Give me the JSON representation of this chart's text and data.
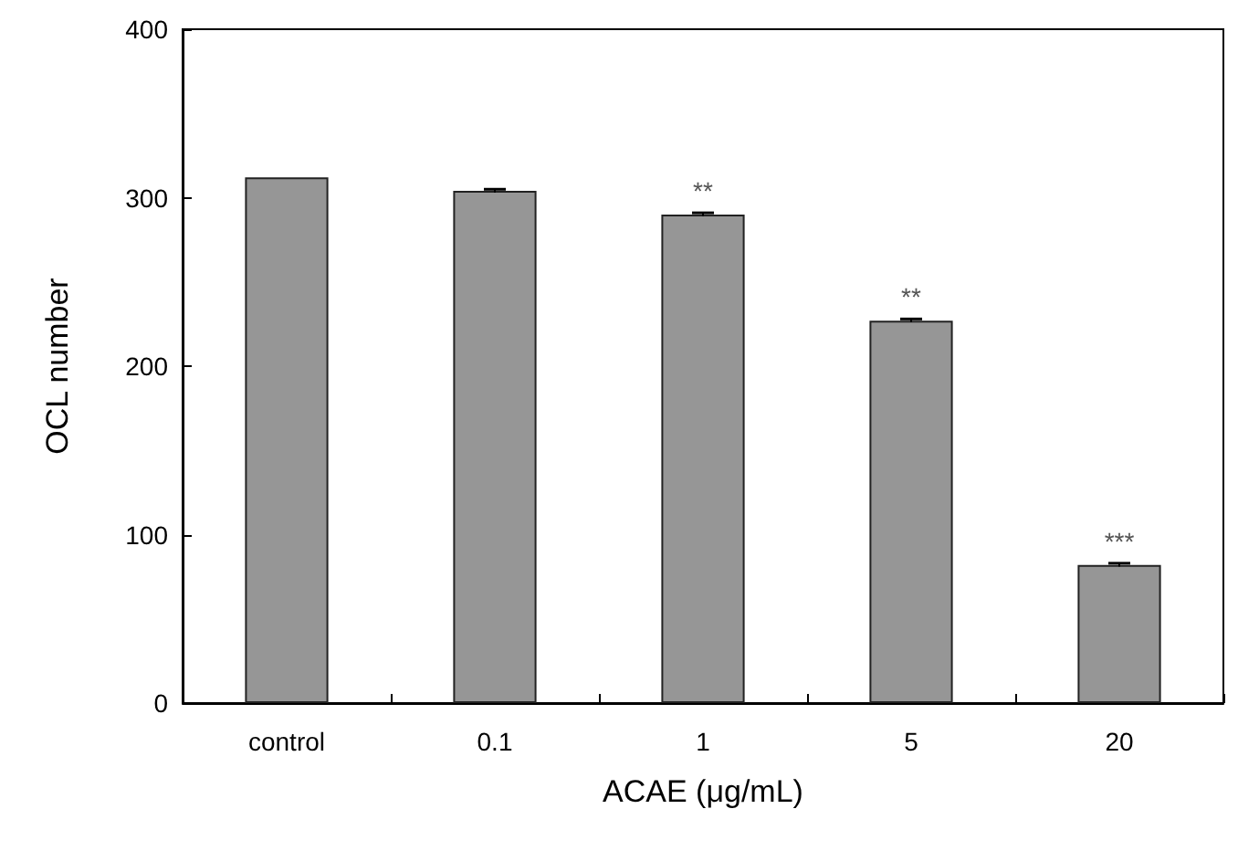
{
  "chart_data": {
    "type": "bar",
    "xlabel": "ACAE (μg/mL)",
    "ylabel": "OCL number",
    "categories": [
      "control",
      "0.1",
      "1",
      "5",
      "20"
    ],
    "values": [
      312,
      304,
      290,
      227,
      82
    ],
    "errors": [
      null,
      1,
      1,
      1,
      1
    ],
    "color": "#969696",
    "ylim": [
      0,
      400
    ],
    "yticks": [
      0,
      100,
      200,
      300,
      400
    ],
    "grid": false,
    "annotations": [
      {
        "text": "**",
        "x": "1",
        "y": 290
      },
      {
        "text": "**",
        "x": "5",
        "y": 227
      },
      {
        "text": "***",
        "x": "20",
        "y": 82
      }
    ]
  }
}
